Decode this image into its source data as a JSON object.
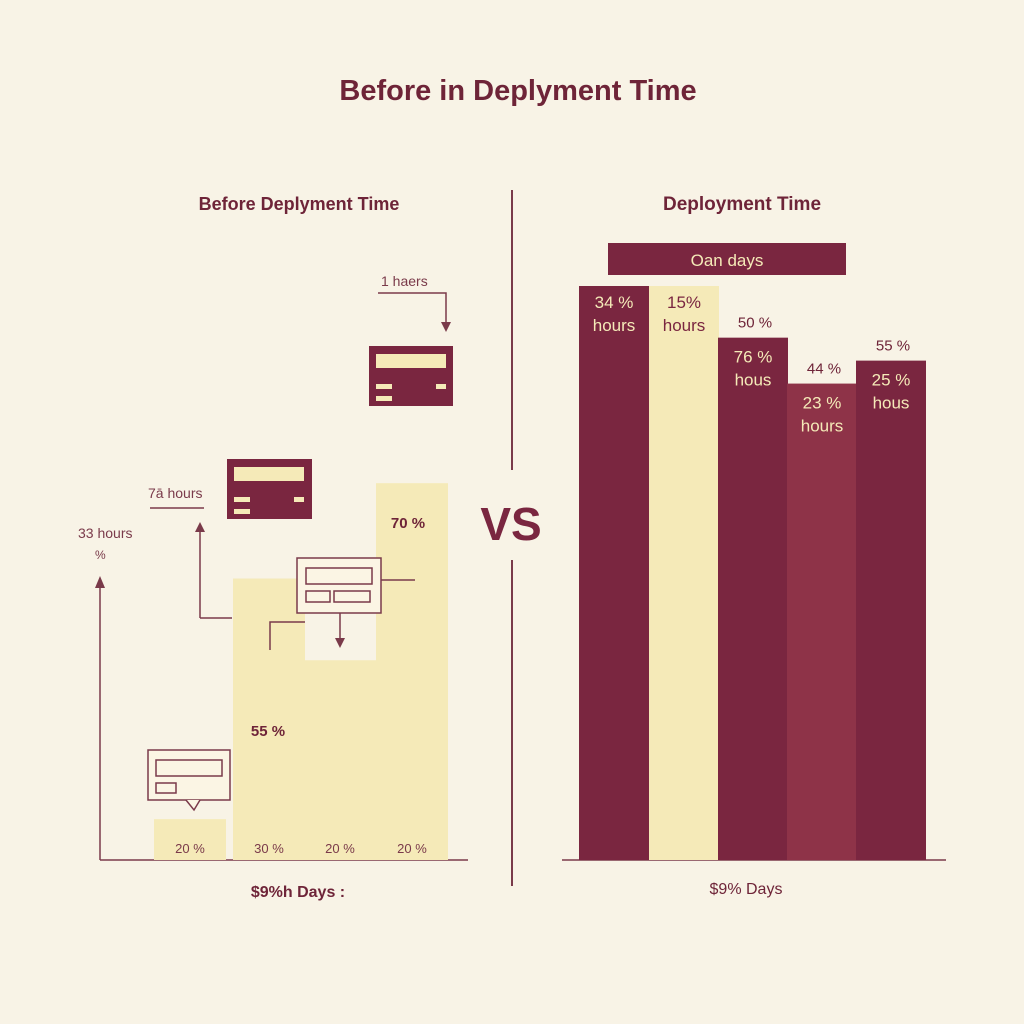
{
  "title": "Before in Deplyment Time",
  "vs_label": "VS",
  "colors": {
    "background": "#f8f3e6",
    "maroon": "#7a2640",
    "maroon_mid": "#8e3348",
    "cream_bar": "#f5eab8",
    "text": "#6e2438",
    "axis": "#7a3a4a"
  },
  "chart_data": [
    {
      "type": "bar",
      "title": "Before Deplyment Time",
      "xlabel": "$9%h Days :",
      "ylabel": "",
      "ylim": [
        0,
        100
      ],
      "categories": [
        "",
        "",
        "",
        ""
      ],
      "values": [
        20,
        30,
        20,
        20
      ],
      "visual_heights": [
        9,
        62,
        44,
        83
      ],
      "tick_labels": [
        "20 %",
        "30 %",
        "20 %",
        "20 %"
      ],
      "annotations": [
        {
          "text": "70 %",
          "bar": 3
        },
        {
          "text": "55 %",
          "bar": 1
        },
        {
          "text": "33 hours"
        },
        {
          "text": "%"
        },
        {
          "text": "7ā hours"
        },
        {
          "text": "1 haers"
        }
      ],
      "icons": [
        "chat-bubble-icon",
        "card-icon",
        "window-icon",
        "card-icon"
      ]
    },
    {
      "type": "bar",
      "title": "Deployment Time",
      "xlabel": "$9% Days",
      "ylabel": "",
      "ylim": [
        0,
        100
      ],
      "header_label": "Oan days",
      "categories": [
        "",
        "",
        "",
        "",
        ""
      ],
      "values": [
        34,
        15,
        76,
        23,
        25
      ],
      "visual_heights": [
        100,
        100,
        91,
        83,
        87
      ],
      "bar_labels": [
        [
          "34 %",
          "hours"
        ],
        [
          "15%",
          "hours"
        ],
        [
          "76 %",
          "hous"
        ],
        [
          "23 %",
          "hours"
        ],
        [
          "25 %",
          "hous"
        ]
      ],
      "top_labels": [
        "",
        "",
        "50 %",
        "44 %",
        "55 %"
      ],
      "bar_colors": [
        "#7a2640",
        "#f5eab8",
        "#7a2640",
        "#8e3348",
        "#7a2640"
      ]
    }
  ]
}
